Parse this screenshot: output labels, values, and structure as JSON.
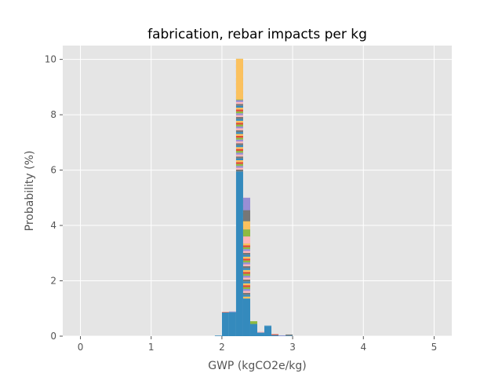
{
  "chart_data": {
    "type": "bar",
    "title": "fabrication, rebar impacts per kg",
    "xlabel": "GWP (kgCO2e/kg)",
    "ylabel": "Probability (%)",
    "xlim": [
      -0.25,
      5.25
    ],
    "ylim": [
      0,
      10.5
    ],
    "xticks": [
      0,
      1,
      2,
      3,
      4,
      5
    ],
    "yticks": [
      0,
      2,
      4,
      6,
      8,
      10
    ],
    "grid": true,
    "bin_width": 0.1,
    "palette": [
      "#348ABD",
      "#E24A33",
      "#988ED5",
      "#777777",
      "#FBC15E",
      "#8EBA42",
      "#FFB5B8"
    ],
    "stacked_bins": [
      {
        "x": 1.95,
        "base": 0.0,
        "top": 0.02
      },
      {
        "x": 2.05,
        "base": 0.86,
        "top": 0.87
      },
      {
        "x": 2.15,
        "base": 0.87,
        "top": 0.89
      },
      {
        "x": 2.25,
        "base": 5.95,
        "top": 10.02
      },
      {
        "x": 2.35,
        "base": 1.36,
        "top": 5.0
      },
      {
        "x": 2.45,
        "base": 0.44,
        "top": 0.54
      },
      {
        "x": 2.55,
        "base": 0.13,
        "top": 0.16
      },
      {
        "x": 2.65,
        "base": 0.35,
        "top": 0.38
      },
      {
        "x": 2.75,
        "base": 0.04,
        "top": 0.07
      },
      {
        "x": 2.85,
        "base": 0.01,
        "top": 0.03
      },
      {
        "x": 2.95,
        "base": 0.02,
        "top": 0.06
      }
    ],
    "series": [
      {
        "values": [
          {
            "x": 1.95,
            "y": 0.0
          },
          {
            "x": 2.05,
            "y": 0.86
          },
          {
            "x": 2.15,
            "y": 0.87
          },
          {
            "x": 2.25,
            "y": 5.95
          },
          {
            "x": 2.35,
            "y": 1.36
          },
          {
            "x": 2.45,
            "y": 0.44
          },
          {
            "x": 2.55,
            "y": 0.13
          },
          {
            "x": 2.65,
            "y": 0.35
          },
          {
            "x": 2.75,
            "y": 0.04
          },
          {
            "x": 2.85,
            "y": 0.01
          },
          {
            "x": 2.95,
            "y": 0.02
          }
        ]
      }
    ]
  }
}
